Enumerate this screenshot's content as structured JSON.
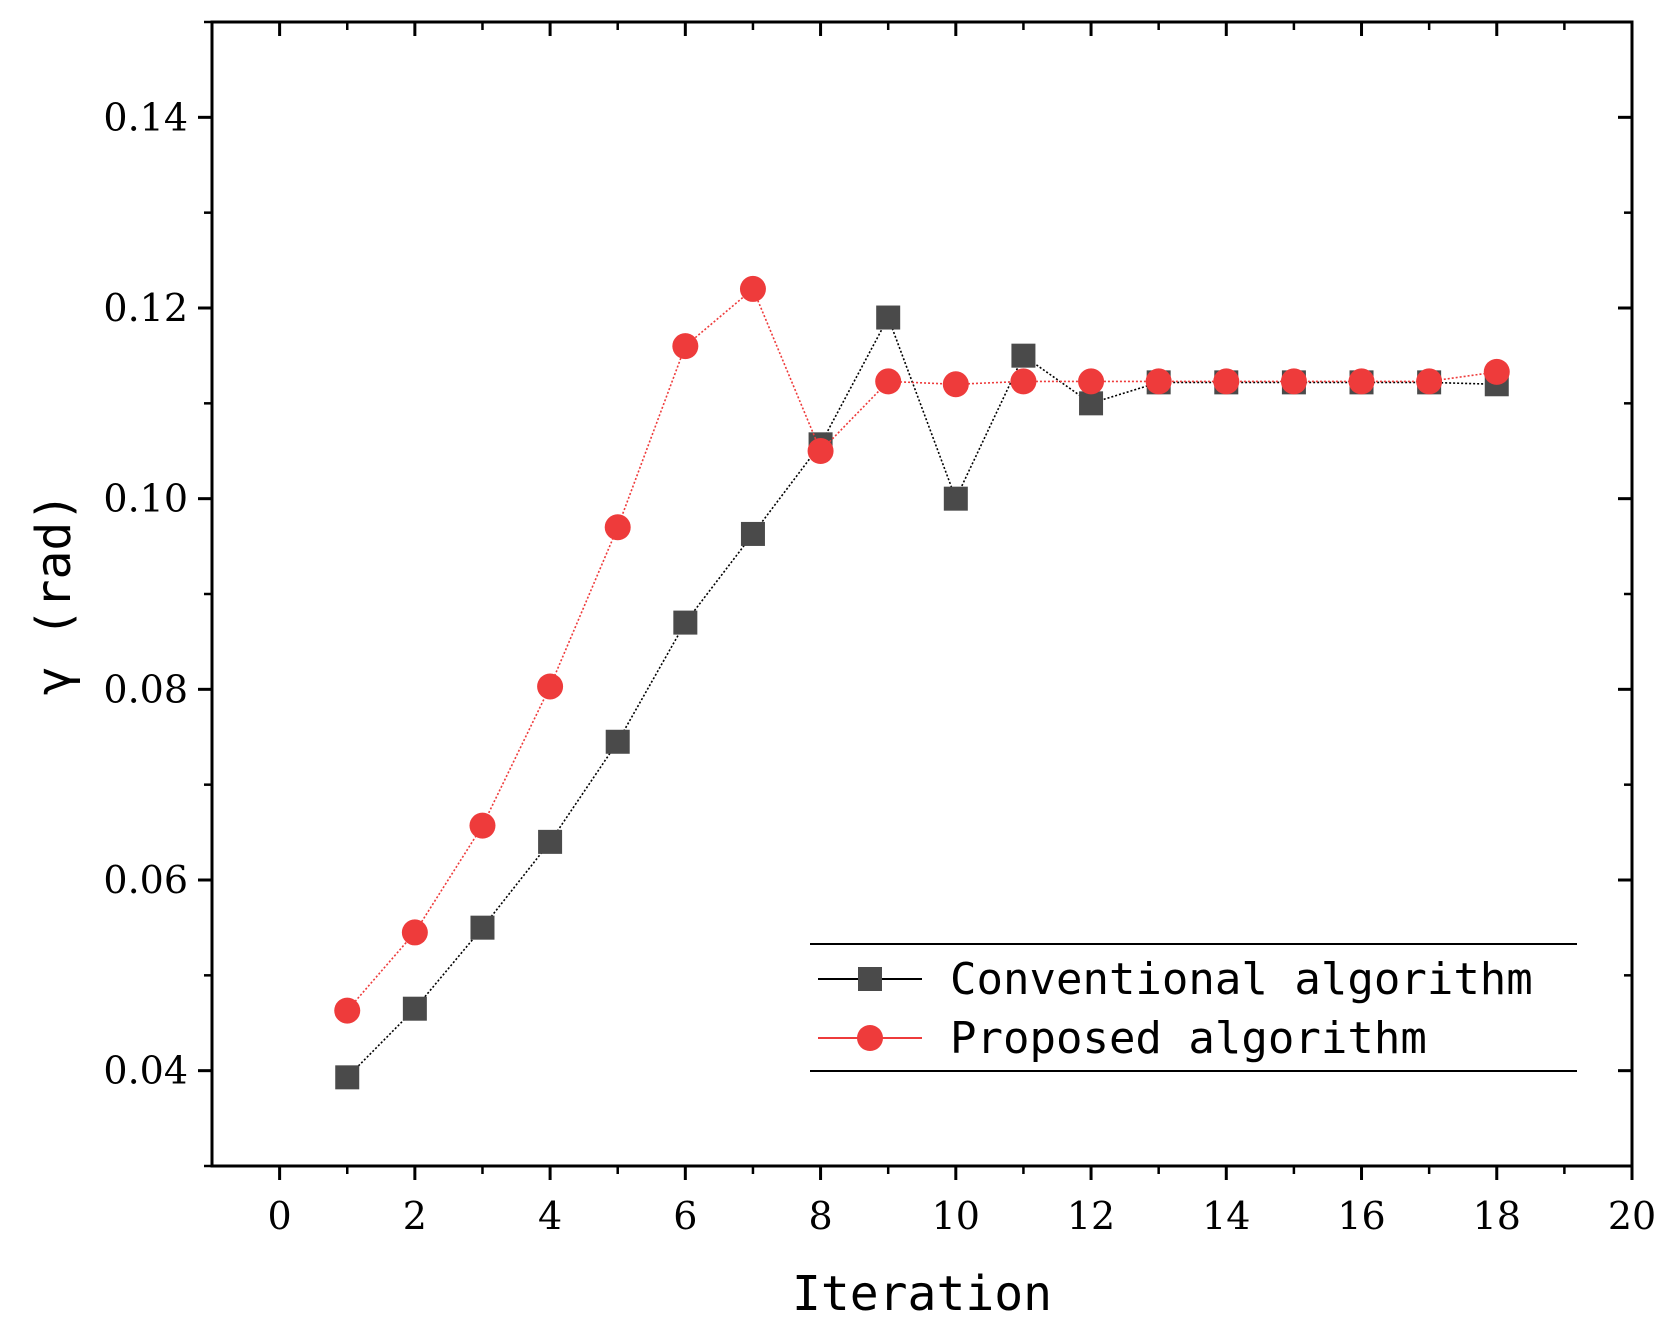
{
  "chart_data": {
    "type": "line",
    "title": "",
    "xlabel": "Iteration",
    "ylabel": "γ (rad)",
    "xlim": [
      -1,
      20
    ],
    "ylim": [
      0.03,
      0.15
    ],
    "xticks": [
      0,
      2,
      4,
      6,
      8,
      10,
      12,
      14,
      16,
      18,
      20
    ],
    "xtick_labels": [
      "0",
      "2",
      "4",
      "6",
      "8",
      "10",
      "12",
      "14",
      "16",
      "18",
      "20"
    ],
    "yticks": [
      0.04,
      0.06,
      0.08,
      0.1,
      0.12,
      0.14
    ],
    "ytick_labels": [
      "0.04",
      "0.06",
      "0.08",
      "0.10",
      "0.12",
      "0.14"
    ],
    "grid": false,
    "legend_position": "bottom-right",
    "series": [
      {
        "name": "Conventional algorithm",
        "marker": "square",
        "color": "#4a4a4a",
        "line_color": "#000000",
        "x": [
          1,
          2,
          3,
          4,
          5,
          6,
          7,
          8,
          9,
          10,
          11,
          12,
          13,
          14,
          15,
          16,
          17,
          18
        ],
        "values": [
          0.0393,
          0.0465,
          0.055,
          0.064,
          0.0745,
          0.087,
          0.0963,
          0.1057,
          0.119,
          0.1,
          0.115,
          0.11,
          0.1122,
          0.1122,
          0.1122,
          0.1122,
          0.1122,
          0.112
        ]
      },
      {
        "name": "Proposed algorithm",
        "marker": "circle",
        "color": "#ee3b3b",
        "line_color": "#ee3b3b",
        "x": [
          1,
          2,
          3,
          4,
          5,
          6,
          7,
          8,
          9,
          10,
          11,
          12,
          13,
          14,
          15,
          16,
          17,
          18
        ],
        "values": [
          0.0463,
          0.0545,
          0.0657,
          0.0803,
          0.097,
          0.116,
          0.122,
          0.105,
          0.1123,
          0.112,
          0.1123,
          0.1123,
          0.1123,
          0.1123,
          0.1123,
          0.1123,
          0.1123,
          0.1133
        ]
      }
    ]
  }
}
